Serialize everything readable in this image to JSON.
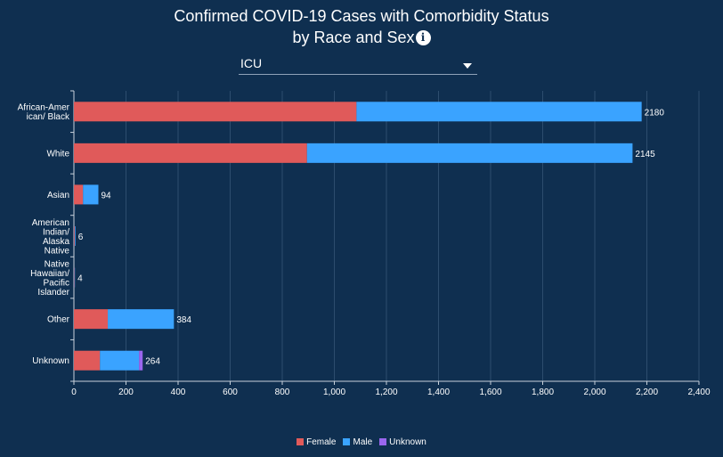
{
  "header": {
    "title_line1": "Confirmed COVID-19 Cases with Comorbidity Status",
    "title_line2": "by Race and Sex",
    "info_glyph": "i"
  },
  "filter": {
    "selected": "ICU"
  },
  "chart_data": {
    "type": "bar",
    "orientation": "horizontal",
    "stacked": true,
    "categories": [
      [
        "African-Amer",
        "ican/ Black"
      ],
      [
        "White"
      ],
      [
        "Asian"
      ],
      [
        "American",
        "Indian/",
        "Alaska",
        "Native"
      ],
      [
        "Native",
        "Hawaiian/",
        "Pacific",
        "Islander"
      ],
      [
        "Other"
      ],
      [
        "Unknown"
      ]
    ],
    "series": [
      {
        "name": "Female",
        "color": "#e05a5a",
        "values": [
          1085,
          895,
          35,
          3,
          2,
          130,
          100
        ]
      },
      {
        "name": "Male",
        "color": "#3aa3ff",
        "values": [
          1095,
          1250,
          59,
          3,
          2,
          254,
          150
        ]
      },
      {
        "name": "Unknown",
        "color": "#9a66ee",
        "values": [
          0,
          0,
          0,
          0,
          0,
          0,
          14
        ]
      }
    ],
    "totals": [
      "2180",
      "2145",
      "94",
      "6",
      "4",
      "384",
      "264"
    ],
    "xlim": [
      0,
      2400
    ],
    "xticks": [
      "0",
      "200",
      "400",
      "600",
      "800",
      "1,000",
      "1,200",
      "1,400",
      "1,600",
      "1,800",
      "2,000",
      "2,200",
      "2,400"
    ],
    "grid": true,
    "legend_position": "bottom"
  }
}
